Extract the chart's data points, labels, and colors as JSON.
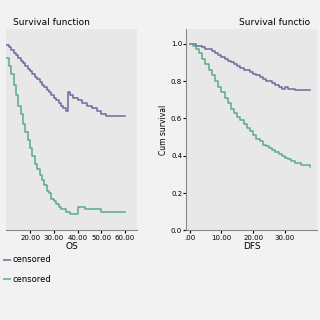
{
  "title": "Survival function",
  "title2": "Survival functio",
  "bg_color": "#e8e8e8",
  "plot_bg_color": "#e8e8e8",
  "figure_bg": "#f2f2f2",
  "blue_color": "#6b6b9b",
  "green_color": "#5aab8a",
  "ylabel_right": "Cum survival",
  "xlabel_left": "OS",
  "xlabel_right": "DFS",
  "legend_line1": "censored",
  "legend_line2": "censored",
  "os_xticks": [
    20.0,
    30.0,
    40.0,
    50.0,
    60.0
  ],
  "os_xtick_labels": [
    "20.00",
    "30.00",
    "40.00",
    "50.00",
    "60.00"
  ],
  "dfs_xticks": [
    0.0,
    10.0,
    20.0,
    30.0
  ],
  "dfs_xtick_labels": [
    ".00",
    "10.00",
    "20.00",
    "30.00"
  ],
  "dfs_yticks": [
    0.0,
    0.2,
    0.4,
    0.6,
    0.8,
    1.0
  ],
  "dfs_ytick_labels": [
    "0.0",
    "0.2",
    "0.4",
    "0.6",
    "0.8",
    "1.0"
  ],
  "linewidth": 1.1,
  "os_blue_t": [
    10,
    11,
    12,
    13,
    14,
    15,
    16,
    17,
    18,
    19,
    20,
    21,
    22,
    23,
    24,
    25,
    26,
    27,
    28,
    29,
    30,
    31,
    32,
    33,
    34,
    35,
    36,
    37,
    38,
    40,
    42,
    44,
    46,
    48,
    50,
    52,
    55,
    58,
    60
  ],
  "os_blue_s": [
    0.98,
    0.97,
    0.96,
    0.95,
    0.94,
    0.93,
    0.92,
    0.91,
    0.9,
    0.89,
    0.88,
    0.87,
    0.86,
    0.85,
    0.84,
    0.83,
    0.82,
    0.81,
    0.8,
    0.79,
    0.78,
    0.77,
    0.76,
    0.75,
    0.74,
    0.73,
    0.8,
    0.79,
    0.78,
    0.77,
    0.76,
    0.75,
    0.74,
    0.73,
    0.72,
    0.71,
    0.71,
    0.71,
    0.71
  ],
  "os_green_t": [
    10,
    11,
    12,
    13,
    14,
    15,
    16,
    17,
    18,
    19,
    20,
    21,
    22,
    23,
    24,
    25,
    26,
    27,
    28,
    29,
    30,
    31,
    32,
    33,
    35,
    37,
    40,
    43,
    46,
    50,
    55,
    60
  ],
  "os_green_s": [
    0.93,
    0.9,
    0.87,
    0.83,
    0.79,
    0.75,
    0.72,
    0.68,
    0.65,
    0.62,
    0.59,
    0.56,
    0.53,
    0.51,
    0.49,
    0.47,
    0.45,
    0.43,
    0.42,
    0.4,
    0.39,
    0.38,
    0.37,
    0.36,
    0.35,
    0.34,
    0.37,
    0.36,
    0.36,
    0.35,
    0.35,
    0.35
  ],
  "dfs_blue_t": [
    0,
    1,
    2,
    3,
    4,
    5,
    6,
    7,
    8,
    9,
    10,
    11,
    12,
    13,
    14,
    15,
    16,
    17,
    18,
    19,
    20,
    21,
    22,
    23,
    24,
    25,
    26,
    27,
    28,
    29,
    30,
    31,
    32,
    33,
    34,
    35,
    36,
    38
  ],
  "dfs_blue_s": [
    1.0,
    1.0,
    0.99,
    0.99,
    0.98,
    0.97,
    0.97,
    0.96,
    0.95,
    0.94,
    0.93,
    0.92,
    0.91,
    0.9,
    0.89,
    0.88,
    0.87,
    0.86,
    0.86,
    0.85,
    0.84,
    0.83,
    0.82,
    0.81,
    0.8,
    0.8,
    0.79,
    0.78,
    0.77,
    0.76,
    0.77,
    0.76,
    0.76,
    0.75,
    0.75,
    0.75,
    0.75,
    0.75
  ],
  "dfs_green_t": [
    0,
    1,
    2,
    3,
    4,
    5,
    6,
    7,
    8,
    9,
    10,
    11,
    12,
    13,
    14,
    15,
    16,
    17,
    18,
    19,
    20,
    21,
    22,
    23,
    24,
    25,
    26,
    27,
    28,
    29,
    30,
    31,
    32,
    33,
    35,
    38
  ],
  "dfs_green_s": [
    1.0,
    0.99,
    0.97,
    0.95,
    0.92,
    0.89,
    0.86,
    0.83,
    0.8,
    0.77,
    0.74,
    0.71,
    0.68,
    0.65,
    0.63,
    0.61,
    0.59,
    0.57,
    0.55,
    0.53,
    0.51,
    0.49,
    0.48,
    0.46,
    0.45,
    0.44,
    0.43,
    0.42,
    0.41,
    0.4,
    0.39,
    0.38,
    0.37,
    0.36,
    0.35,
    0.34
  ]
}
